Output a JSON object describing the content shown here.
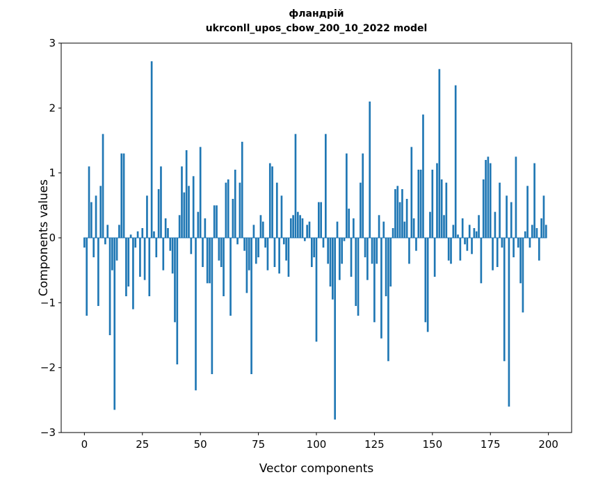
{
  "chart_data": {
    "type": "bar",
    "title": "фландрій",
    "subtitle": "ukrconll_upos_cbow_200_10_2022 model",
    "xlabel": "Vector components",
    "ylabel": "Components values",
    "bar_color": "#1f77b4",
    "xlim": [
      -10,
      210
    ],
    "ylim": [
      -3,
      3
    ],
    "x_ticks": [
      0,
      25,
      50,
      75,
      100,
      125,
      150,
      175,
      200
    ],
    "y_ticks": [
      -3,
      -2,
      -1,
      0,
      1,
      2,
      3
    ],
    "grid": false,
    "legend": "none",
    "values": [
      -0.15,
      -1.2,
      1.1,
      0.55,
      -0.3,
      0.65,
      -1.05,
      0.8,
      1.6,
      -0.1,
      0.2,
      -1.5,
      -0.5,
      -2.65,
      -0.35,
      0.2,
      1.3,
      1.3,
      -0.9,
      -0.75,
      0.05,
      -1.1,
      -0.15,
      0.1,
      -0.6,
      0.15,
      -0.65,
      0.65,
      -0.9,
      2.72,
      0.1,
      -0.3,
      0.75,
      1.1,
      -0.5,
      0.3,
      0.15,
      -0.2,
      -0.55,
      -1.3,
      -1.95,
      0.35,
      1.1,
      0.7,
      1.35,
      0.8,
      -0.25,
      0.95,
      -2.35,
      0.4,
      1.4,
      -0.45,
      0.3,
      -0.7,
      -0.7,
      -2.1,
      0.5,
      0.5,
      -0.35,
      -0.45,
      -0.9,
      0.85,
      0.9,
      -1.2,
      0.6,
      1.05,
      -0.1,
      0.85,
      1.48,
      -0.2,
      -0.85,
      -0.5,
      -2.1,
      0.2,
      -0.4,
      -0.3,
      0.35,
      0.25,
      -0.15,
      -0.5,
      1.15,
      1.1,
      -0.45,
      0.85,
      -0.55,
      0.65,
      -0.1,
      -0.35,
      -0.6,
      0.3,
      0.35,
      1.6,
      0.4,
      0.35,
      0.3,
      -0.05,
      0.2,
      0.25,
      -0.45,
      -0.3,
      -1.6,
      0.55,
      0.55,
      -0.15,
      1.6,
      -0.4,
      -0.75,
      -0.95,
      -2.8,
      0.25,
      -0.65,
      -0.4,
      -0.05,
      1.3,
      0.45,
      -0.6,
      0.3,
      -1.05,
      -1.2,
      0.85,
      1.3,
      -0.3,
      -0.65,
      2.1,
      -0.4,
      -1.3,
      -0.4,
      0.35,
      -1.55,
      0.25,
      -0.9,
      -1.9,
      -0.75,
      0.15,
      0.75,
      0.8,
      0.55,
      0.75,
      0.25,
      0.6,
      -0.4,
      1.4,
      0.3,
      -0.2,
      1.05,
      1.05,
      1.9,
      -1.3,
      -1.45,
      0.4,
      1.05,
      -0.6,
      1.15,
      2.6,
      0.9,
      0.35,
      0.85,
      -0.35,
      -0.4,
      0.2,
      2.35,
      0.05,
      -0.35,
      0.3,
      -0.1,
      -0.2,
      0.2,
      -0.25,
      0.15,
      0.1,
      0.35,
      -0.7,
      0.9,
      1.2,
      1.25,
      1.15,
      -0.5,
      0.4,
      -0.45,
      0.85,
      -0.15,
      -1.9,
      0.65,
      -2.6,
      0.55,
      -0.3,
      1.25,
      -0.15,
      -0.7,
      -1.15,
      0.1,
      0.8,
      -0.15,
      0.2,
      1.15,
      0.15,
      -0.35,
      0.3,
      0.65,
      0.2
    ]
  }
}
